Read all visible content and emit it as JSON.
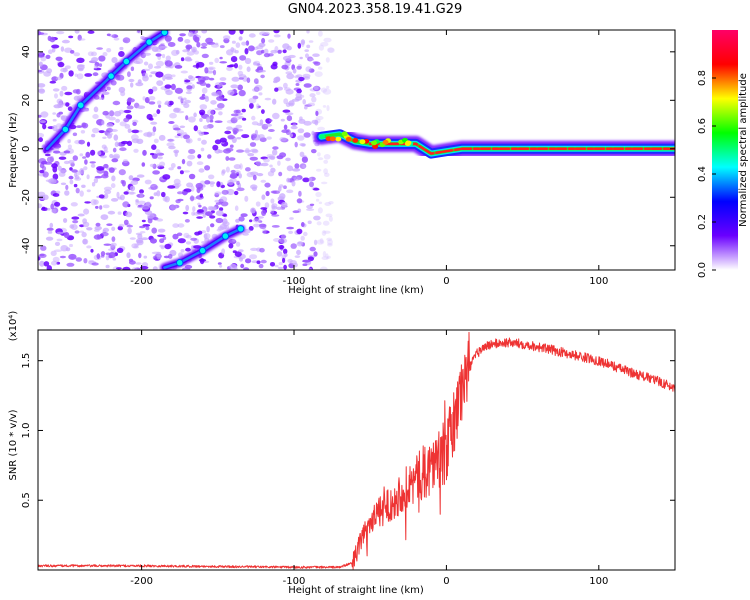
{
  "title": "GN04.2023.358.19.41.G29",
  "chart_data": [
    {
      "type": "heatmap",
      "xlabel": "Height of straight line (km)",
      "ylabel": "Frequency (Hz)",
      "xlim": [
        -268,
        150
      ],
      "ylim": [
        -50,
        49
      ],
      "x_ticks": [
        -200,
        -100,
        0,
        100
      ],
      "y_ticks": [
        -40,
        -20,
        0,
        20,
        40
      ],
      "noise_region_x": [
        -268,
        -82
      ],
      "colorbar": {
        "label": "Normalized spectral amplitude",
        "range": [
          0.0,
          1.0
        ],
        "ticks": [
          0.0,
          0.2,
          0.4,
          0.6,
          0.8
        ],
        "colormap": [
          "#ffffff",
          "#6a00ff",
          "#0000ff",
          "#00ffff",
          "#00ff00",
          "#ffff00",
          "#ff0000",
          "#ff0066"
        ]
      },
      "series": [
        {
          "points": [
            [
              -82,
              5
            ],
            [
              -70,
              6
            ],
            [
              -60,
              3
            ],
            [
              -50,
              2
            ],
            [
              -40,
              2
            ],
            [
              -30,
              2
            ],
            [
              -20,
              2
            ],
            [
              -10,
              -2
            ],
            [
              0,
              -1
            ],
            [
              10,
              0
            ],
            [
              20,
              0
            ],
            [
              40,
              0
            ],
            [
              60,
              0
            ],
            [
              80,
              0
            ],
            [
              100,
              0
            ],
            [
              120,
              0
            ],
            [
              150,
              0
            ]
          ]
        },
        {
          "points": [
            [
              -262,
              0
            ],
            [
              -250,
              8
            ],
            [
              -240,
              18
            ],
            [
              -220,
              30
            ],
            [
              -210,
              36
            ],
            [
              -195,
              44
            ],
            [
              -185,
              48
            ]
          ]
        },
        {
          "points": [
            [
              -185,
              -49
            ],
            [
              -175,
              -47
            ],
            [
              -160,
              -42
            ],
            [
              -145,
              -36
            ],
            [
              -135,
              -33
            ]
          ]
        }
      ]
    },
    {
      "type": "line",
      "xlabel": "Height of straight line (km)",
      "ylabel": "SNR (10 * v/v)",
      "y_multiplier": "(x10⁴)",
      "xlim": [
        -268,
        150
      ],
      "ylim": [
        0,
        1.72
      ],
      "x_ticks": [
        -200,
        -100,
        0,
        100
      ],
      "y_ticks": [
        0.5,
        1.0,
        1.5
      ],
      "color": "#ee3333",
      "x": [
        -268,
        -200,
        -100,
        -70,
        -62,
        -58,
        -55,
        -50,
        -40,
        -30,
        -20,
        -10,
        0,
        5,
        10,
        15,
        20,
        25,
        30,
        40,
        50,
        60,
        80,
        100,
        120,
        140,
        150
      ],
      "values": [
        0.03,
        0.03,
        0.02,
        0.02,
        0.05,
        0.15,
        0.25,
        0.35,
        0.45,
        0.55,
        0.65,
        0.75,
        0.85,
        1.05,
        1.3,
        1.45,
        1.55,
        1.6,
        1.62,
        1.63,
        1.62,
        1.6,
        1.55,
        1.5,
        1.42,
        1.35,
        1.3
      ]
    }
  ]
}
